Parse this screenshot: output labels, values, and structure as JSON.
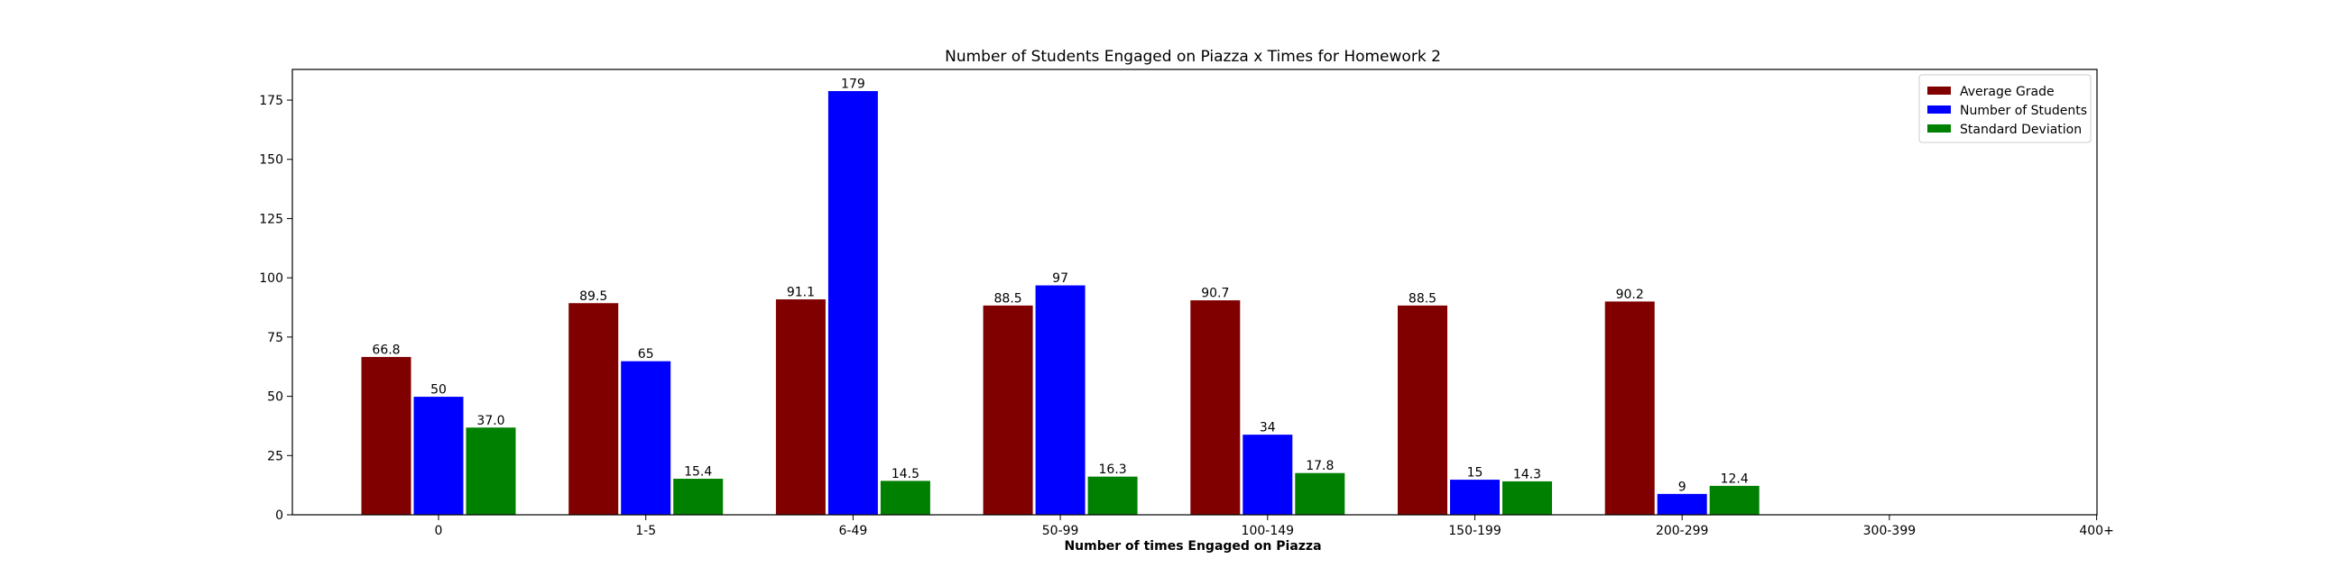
{
  "chart_data": {
    "type": "bar",
    "title": "Number of Students Engaged on Piazza x Times for Homework 2",
    "xlabel": "Number of times Engaged on Piazza",
    "ylabel": "",
    "ylim": [
      0,
      187.95
    ],
    "yticks": [
      0,
      25,
      50,
      75,
      100,
      125,
      150,
      175
    ],
    "categories": [
      "0",
      "1-5",
      "6-49",
      "50-99",
      "100-149",
      "150-199",
      "200-299",
      "300-399",
      "400+"
    ],
    "legend_position": "top-right",
    "grid": false,
    "series": [
      {
        "name": "Average Grade",
        "color": "#800000",
        "values": [
          66.8,
          89.5,
          91.1,
          88.5,
          90.7,
          88.5,
          90.2,
          null,
          null
        ],
        "labels": [
          "66.8",
          "89.5",
          "91.1",
          "88.5",
          "90.7",
          "88.5",
          "90.2",
          "",
          ""
        ]
      },
      {
        "name": "Number of Students",
        "color": "#0000ff",
        "values": [
          50,
          65,
          179,
          97,
          34,
          15,
          9,
          null,
          null
        ],
        "labels": [
          "50",
          "65",
          "179",
          "97",
          "34",
          "15",
          "9",
          "",
          ""
        ]
      },
      {
        "name": "Standard Deviation",
        "color": "#008000",
        "values": [
          37.0,
          15.4,
          14.5,
          16.3,
          17.8,
          14.3,
          12.4,
          null,
          null
        ],
        "labels": [
          "37.0",
          "15.4",
          "14.5",
          "16.3",
          "17.8",
          "14.3",
          "12.4",
          "",
          ""
        ]
      }
    ]
  }
}
